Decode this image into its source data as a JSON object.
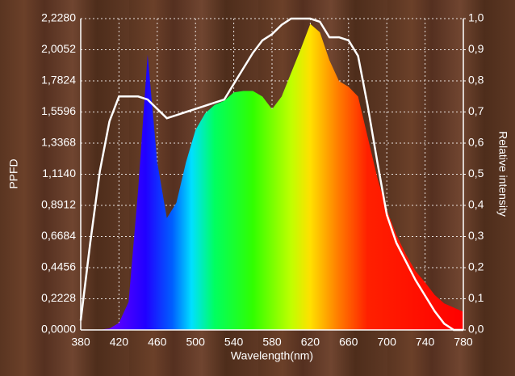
{
  "chart_data": {
    "type": "area",
    "x_label": "Wavelength(nm)",
    "y_label": "PPFD",
    "y2_label": "Relative intensity",
    "x": [
      380,
      390,
      400,
      410,
      420,
      430,
      440,
      450,
      460,
      470,
      480,
      490,
      500,
      510,
      520,
      530,
      540,
      550,
      560,
      570,
      580,
      590,
      600,
      610,
      620,
      630,
      640,
      650,
      660,
      670,
      680,
      690,
      700,
      710,
      720,
      730,
      740,
      750,
      760,
      770,
      780
    ],
    "series": [
      {
        "values": [
          0,
          0,
          0.002,
          0.01,
          0.05,
          0.2,
          1.0,
          1.97,
          1.2,
          0.8,
          0.91,
          1.2,
          1.43,
          1.55,
          1.61,
          1.64,
          1.7,
          1.71,
          1.71,
          1.67,
          1.58,
          1.67,
          1.84,
          2.01,
          2.19,
          2.13,
          1.93,
          1.78,
          1.74,
          1.67,
          1.38,
          1.09,
          0.86,
          0.68,
          0.54,
          0.42,
          0.34,
          0.25,
          0.19,
          0.16,
          0.13
        ]
      },
      {
        "axis": "y2",
        "color": "#ffffff",
        "values": [
          0.03,
          0.28,
          0.51,
          0.67,
          0.75,
          0.75,
          0.75,
          0.74,
          0.71,
          0.68,
          0.69,
          0.7,
          0.71,
          0.72,
          0.73,
          0.74,
          0.79,
          0.84,
          0.89,
          0.93,
          0.95,
          0.98,
          1.0,
          1.0,
          1.0,
          0.99,
          0.94,
          0.94,
          0.93,
          0.88,
          0.72,
          0.54,
          0.37,
          0.28,
          0.22,
          0.16,
          0.11,
          0.06,
          0.02,
          0,
          0
        ]
      }
    ],
    "xlim": [
      380,
      780
    ],
    "xticks": [
      380,
      420,
      460,
      500,
      540,
      580,
      620,
      660,
      700,
      740,
      780
    ],
    "ylim": [
      0,
      2.228
    ],
    "yticks": [
      {
        "value": 0,
        "label": "0,0000"
      },
      {
        "value": 0.2228,
        "label": "0,2228"
      },
      {
        "value": 0.4456,
        "label": "0,4456"
      },
      {
        "value": 0.6684,
        "label": "0,6684"
      },
      {
        "value": 0.8912,
        "label": "0,8912"
      },
      {
        "value": 1.114,
        "label": "1,1140"
      },
      {
        "value": 1.3368,
        "label": "1,3368"
      },
      {
        "value": 1.5596,
        "label": "1,5596"
      },
      {
        "value": 1.7824,
        "label": "1,7824"
      },
      {
        "value": 2.0052,
        "label": "2,0052"
      },
      {
        "value": 2.228,
        "label": "2,2280"
      }
    ],
    "y2lim": [
      0,
      1
    ],
    "y2ticks": [
      {
        "value": 0,
        "label": "0,0"
      },
      {
        "value": 0.1,
        "label": "0,1"
      },
      {
        "value": 0.2,
        "label": "0,2"
      },
      {
        "value": 0.3,
        "label": "0,3"
      },
      {
        "value": 0.4,
        "label": "0,4"
      },
      {
        "value": 0.5,
        "label": "0,5"
      },
      {
        "value": 0.6,
        "label": "0,6"
      },
      {
        "value": 0.7,
        "label": "0,7"
      },
      {
        "value": 0.8,
        "label": "0,8"
      },
      {
        "value": 0.9,
        "label": "0,9"
      },
      {
        "value": 1,
        "label": "1,0"
      }
    ],
    "grid": true
  }
}
